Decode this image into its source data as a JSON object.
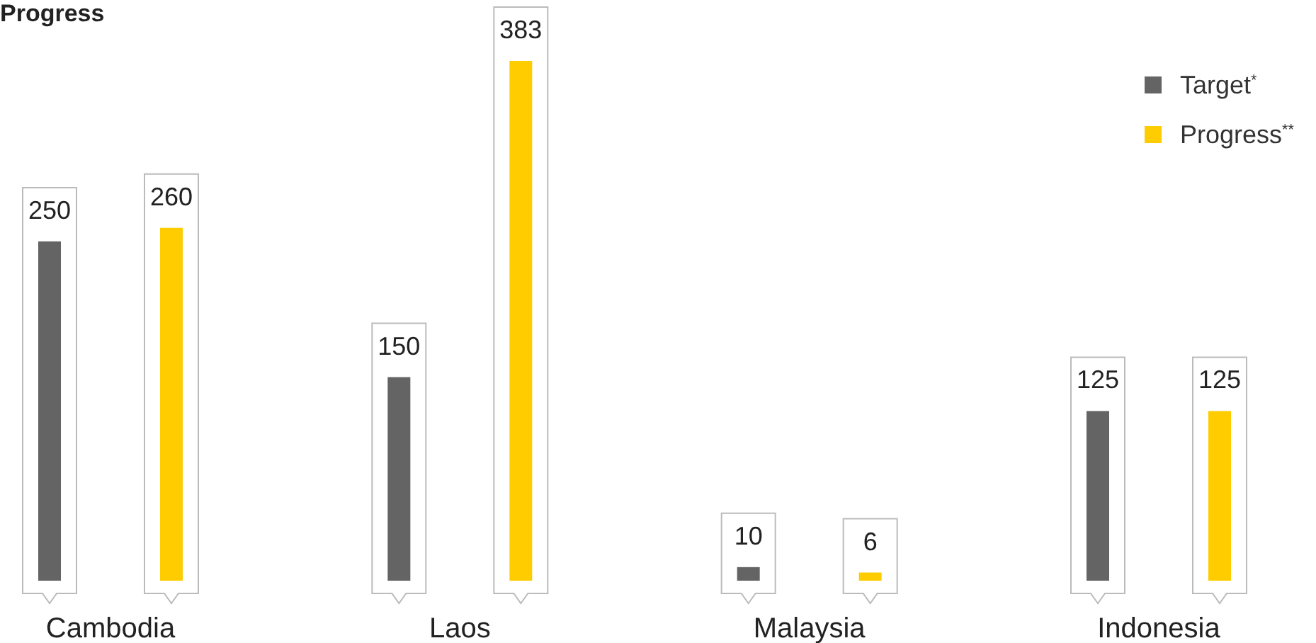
{
  "chart_data": {
    "type": "bar",
    "title": "Progress",
    "categories": [
      "Cambodia",
      "Laos",
      "Malaysia",
      "Indonesia"
    ],
    "series": [
      {
        "name": "Target$^{*}$",
        "color": "#646464",
        "values": [
          250,
          150,
          10,
          125
        ]
      },
      {
        "name": "Progress$^{**}$",
        "color": "#ffcc00",
        "values": [
          260,
          383,
          6,
          125
        ]
      }
    ],
    "data_labels": true,
    "legend": "top right"
  }
}
